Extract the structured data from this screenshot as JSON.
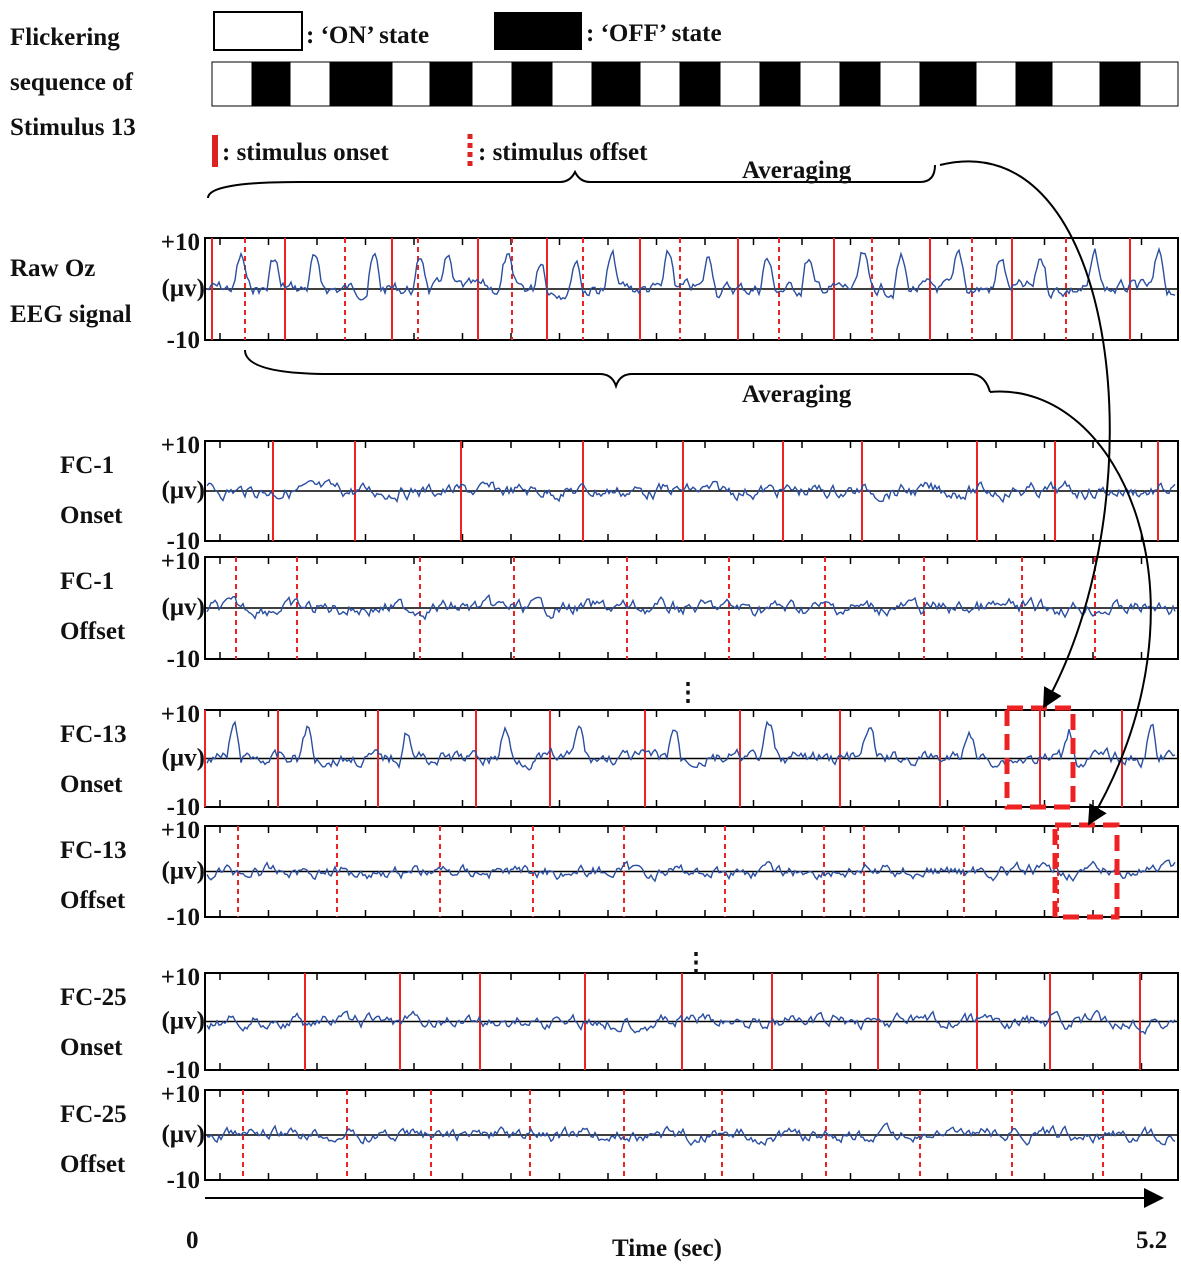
{
  "header": {
    "title_lines": [
      "Flickering",
      "sequence of",
      "Stimulus 13"
    ],
    "legend": {
      "on": ": ‘ON’ state",
      "off": ": ‘OFF’ state",
      "onset": ": stimulus onset",
      "offset": ": stimulus offset"
    }
  },
  "averaging": [
    "Averaging",
    "Averaging"
  ],
  "panels": [
    {
      "label": [
        "Raw Oz",
        "EEG signal"
      ],
      "y_top": "+10",
      "y_unit": "(µv)",
      "y_bottom": "-10"
    },
    {
      "label": [
        "FC-1",
        "Onset"
      ],
      "y_top": "+10",
      "y_unit": "(µv)",
      "y_bottom": "-10"
    },
    {
      "label": [
        "FC-1",
        "Offset"
      ],
      "y_top": "+10",
      "y_unit": "(µv)",
      "y_bottom": "-10"
    },
    {
      "label": [
        "FC-13",
        "Onset"
      ],
      "y_top": "+10",
      "y_unit": "(µv)",
      "y_bottom": "-10"
    },
    {
      "label": [
        "FC-13",
        "Offset"
      ],
      "y_top": "+10",
      "y_unit": "(µv)",
      "y_bottom": "-10"
    },
    {
      "label": [
        "FC-25",
        "Onset"
      ],
      "y_top": "+10",
      "y_unit": "(µv)",
      "y_bottom": "-10"
    },
    {
      "label": [
        "FC-25",
        "Offset"
      ],
      "y_top": "+10",
      "y_unit": "(µv)",
      "y_bottom": "-10"
    }
  ],
  "x_axis": {
    "start": "0",
    "end": "5.2",
    "label": "Time (sec)"
  }
}
